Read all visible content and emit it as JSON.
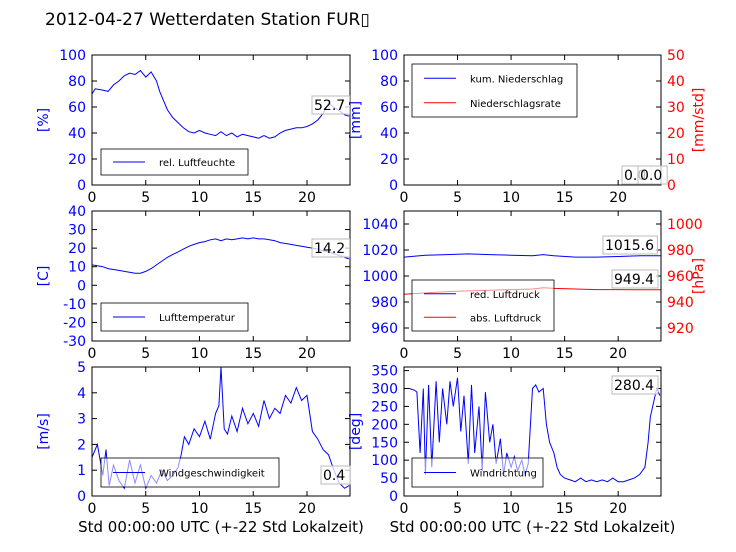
{
  "title": "2012-04-27 Wetterdaten Station FUR▯",
  "chart_data": [
    {
      "id": "humidity",
      "type": "line",
      "ylabel": "[%]",
      "xlim": [
        0,
        24
      ],
      "ylim": [
        0,
        100
      ],
      "xticks": [
        0,
        5,
        10,
        15,
        20
      ],
      "yticks": [
        0,
        20,
        40,
        60,
        80,
        100
      ],
      "value_label": "52.7",
      "series": [
        {
          "name": "rel. Luftfeuchte",
          "color": "#0000ff",
          "x": [
            0,
            0.3,
            1,
            1.5,
            2,
            2.5,
            3,
            3.5,
            4,
            4.5,
            5,
            5.5,
            6,
            6.3,
            6.6,
            7,
            7.5,
            8,
            8.5,
            9,
            9.5,
            10,
            10.5,
            11,
            11.5,
            12,
            12.5,
            13,
            13.5,
            14,
            14.5,
            15,
            15.5,
            16,
            16.5,
            17,
            17.5,
            18,
            18.5,
            19,
            19.5,
            20,
            20.5,
            21,
            21.5,
            22,
            22.5,
            23,
            23.5,
            23.9
          ],
          "y": [
            70,
            74,
            73,
            72,
            77,
            80,
            84,
            86,
            85,
            88,
            83,
            87,
            80,
            72,
            66,
            58,
            52,
            48,
            44,
            41,
            40,
            42,
            40,
            39,
            38,
            41,
            38,
            40,
            37,
            39,
            38,
            37,
            36,
            38,
            36,
            37,
            40,
            42,
            43,
            44,
            44,
            45,
            47,
            50,
            55,
            63,
            60,
            57,
            54,
            53
          ]
        }
      ]
    },
    {
      "id": "precipitation",
      "type": "line",
      "ylabel": "[mm]",
      "ylabel_right": "[mm/std]",
      "xlim": [
        0,
        24
      ],
      "ylim": [
        0,
        100
      ],
      "ylim_right": [
        0,
        50
      ],
      "xticks": [
        0,
        5,
        10,
        15,
        20
      ],
      "yticks": [
        0,
        20,
        40,
        60,
        80,
        100
      ],
      "yticks_right": [
        0,
        10,
        20,
        30,
        40,
        50
      ],
      "value_label": "0.0",
      "value_label_2": "0.0",
      "series": [
        {
          "name": "kum. Niederschlag",
          "color": "#0000ff",
          "x": [
            0,
            24
          ],
          "y": [
            0,
            0
          ]
        },
        {
          "name": "Niederschlagsrate",
          "color": "#ff0000",
          "axis": "right",
          "x": [
            0,
            24
          ],
          "y": [
            0,
            0
          ]
        }
      ]
    },
    {
      "id": "temperature",
      "type": "line",
      "ylabel": "[C]",
      "xlim": [
        0,
        24
      ],
      "ylim": [
        -30,
        40
      ],
      "xticks": [
        0,
        5,
        10,
        15,
        20
      ],
      "yticks": [
        -30,
        -20,
        -10,
        0,
        10,
        20,
        30,
        40
      ],
      "value_label": "14.2",
      "series": [
        {
          "name": "Lufttemperatur",
          "color": "#0000ff",
          "x": [
            0,
            0.5,
            1,
            1.5,
            2,
            2.5,
            3,
            3.5,
            4,
            4.5,
            5,
            5.5,
            6,
            6.5,
            7,
            7.5,
            8,
            8.5,
            9,
            9.5,
            10,
            10.5,
            11,
            11.5,
            12,
            12.5,
            13,
            13.5,
            14,
            14.5,
            15,
            15.5,
            16,
            16.5,
            17,
            17.5,
            18,
            18.5,
            19,
            19.5,
            20,
            20.5,
            21,
            21.5,
            22,
            22.5,
            23,
            23.5,
            23.9
          ],
          "y": [
            11,
            10.5,
            10,
            9,
            8.5,
            8,
            7.5,
            7,
            6.5,
            6.5,
            7.5,
            9,
            11,
            13,
            15,
            16.5,
            18,
            19.5,
            21,
            22,
            23,
            23.5,
            24.5,
            25,
            24,
            25,
            24.5,
            25,
            25.5,
            25,
            25.5,
            25,
            25,
            24.5,
            24,
            23,
            22.5,
            22,
            21.5,
            21,
            20.5,
            20,
            19.5,
            18.5,
            18,
            17,
            16,
            15,
            14.2
          ]
        }
      ]
    },
    {
      "id": "pressure",
      "type": "line",
      "ylabel_right": "[hPa]",
      "xlim": [
        0,
        24
      ],
      "ylim": [
        950,
        1050
      ],
      "ylim_right": [
        910,
        1010
      ],
      "xticks": [
        0,
        5,
        10,
        15,
        20
      ],
      "yticks": [
        960,
        980,
        1000,
        1020,
        1040
      ],
      "yticks_right": [
        920,
        940,
        960,
        980,
        1000
      ],
      "value_label": "1015.6",
      "value_label_2": "949.4",
      "series": [
        {
          "name": "red. Luftdruck",
          "color": "#0000ff",
          "x": [
            0,
            2,
            4,
            6,
            8,
            10,
            12,
            13,
            14,
            16,
            18,
            20,
            22,
            24
          ],
          "y": [
            1014.5,
            1016,
            1016.5,
            1017,
            1016.5,
            1016,
            1015.5,
            1016.5,
            1015.5,
            1014.5,
            1014.5,
            1015,
            1015.5,
            1015.6
          ]
        },
        {
          "name": "abs. Luftdruck",
          "color": "#ff0000",
          "axis": "right",
          "x": [
            0,
            2,
            4,
            6,
            8,
            10,
            12,
            13,
            14,
            16,
            18,
            20,
            22,
            24
          ],
          "y": [
            946,
            947,
            948,
            948.5,
            949,
            949.5,
            950,
            951,
            950.5,
            950,
            949.5,
            949.5,
            949.4,
            949.4
          ]
        }
      ]
    },
    {
      "id": "windspeed",
      "type": "line",
      "ylabel": "[m/s]",
      "xlabel": "Std 00:00:00 UTC (+-22 Std Lokalzeit)",
      "xlim": [
        0,
        24
      ],
      "ylim": [
        0,
        5
      ],
      "xticks": [
        0,
        5,
        10,
        15,
        20
      ],
      "yticks": [
        0,
        1,
        2,
        3,
        4,
        5
      ],
      "value_label": "0.4",
      "series": [
        {
          "name": "Windgeschwindigkeit",
          "color": "#0000ff",
          "x": [
            0,
            0.5,
            1,
            1.3,
            1.6,
            2,
            2.5,
            3,
            3.5,
            4,
            4.5,
            5,
            5.5,
            6,
            6.5,
            7,
            7.5,
            8,
            8.3,
            8.6,
            9,
            9.5,
            10,
            10.5,
            11,
            11.5,
            11.8,
            12,
            12.3,
            12.6,
            13,
            13.5,
            14,
            14.5,
            15,
            15.5,
            16,
            16.5,
            17,
            17.5,
            18,
            18.5,
            19,
            19.5,
            20,
            20.5,
            21,
            21.5,
            22,
            22.5,
            23,
            23.5,
            23.9
          ],
          "y": [
            1.5,
            2.0,
            0.8,
            1.8,
            0.4,
            1.2,
            0.6,
            0.3,
            1.4,
            0.5,
            1.2,
            0.3,
            0.8,
            0.5,
            1.0,
            0.6,
            0.8,
            1.1,
            1.6,
            2.3,
            2.0,
            2.6,
            2.3,
            2.9,
            2.2,
            3.2,
            3.5,
            5.0,
            2.6,
            2.4,
            3.1,
            2.5,
            3.4,
            2.8,
            3.2,
            2.7,
            3.7,
            3.0,
            3.4,
            3.2,
            3.9,
            3.6,
            4.2,
            3.7,
            3.9,
            2.5,
            2.2,
            1.8,
            1.6,
            1.0,
            0.5,
            0.3,
            0.4
          ]
        }
      ]
    },
    {
      "id": "winddirection",
      "type": "line",
      "ylabel": "[deg]",
      "xlabel": "Std 00:00:00 UTC (+-22 Std Lokalzeit)",
      "xlim": [
        0,
        24
      ],
      "ylim": [
        0,
        360
      ],
      "xticks": [
        0,
        5,
        10,
        15,
        20
      ],
      "yticks": [
        0,
        50,
        100,
        150,
        200,
        250,
        300,
        350
      ],
      "value_label": "280.4",
      "series": [
        {
          "name": "Windrichtung",
          "color": "#0000ff",
          "x": [
            0,
            0.5,
            1,
            1.2,
            1.5,
            1.8,
            2,
            2.3,
            2.6,
            3,
            3.3,
            3.6,
            4,
            4.3,
            4.6,
            5,
            5.3,
            5.6,
            6,
            6.3,
            6.6,
            7,
            7.3,
            7.6,
            8,
            8.3,
            8.6,
            9,
            9.3,
            9.6,
            10,
            10.3,
            10.6,
            11,
            11.3,
            11.6,
            12,
            12.3,
            12.6,
            13,
            13.3,
            13.6,
            14,
            14.3,
            14.6,
            15,
            15.5,
            16,
            16.5,
            17,
            17.5,
            18,
            18.5,
            19,
            19.5,
            20,
            20.5,
            21,
            21.5,
            22,
            22.5,
            22.8,
            23,
            23.3,
            23.6,
            23.9
          ],
          "y": [
            300,
            300,
            295,
            290,
            120,
            300,
            60,
            310,
            80,
            320,
            150,
            300,
            200,
            320,
            250,
            330,
            180,
            280,
            90,
            310,
            120,
            250,
            70,
            290,
            150,
            200,
            90,
            160,
            60,
            120,
            80,
            110,
            70,
            100,
            60,
            90,
            300,
            310,
            290,
            300,
            200,
            150,
            120,
            80,
            60,
            50,
            45,
            40,
            50,
            40,
            45,
            40,
            45,
            40,
            50,
            40,
            40,
            45,
            50,
            60,
            80,
            150,
            220,
            260,
            300,
            280.4
          ]
        }
      ]
    }
  ]
}
